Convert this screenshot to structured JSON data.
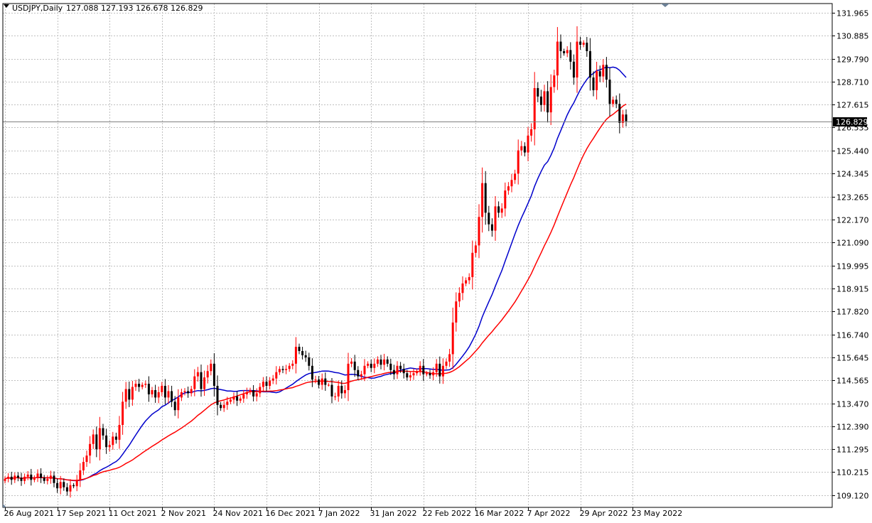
{
  "header": {
    "symbol_timeframe": "USDJPY,Daily",
    "ohlc_text": "127.088 127.193 126.678 126.829"
  },
  "colors": {
    "background": "#ffffff",
    "grid": "#c0c0c0",
    "bull_candle": "#ff0000",
    "bear_candle": "#000000",
    "ma_fast": "#0000cc",
    "ma_slow": "#ff0000",
    "price_label_bg": "#000000",
    "price_label_text": "#ffffff"
  },
  "chart_data": {
    "type": "candlestick",
    "symbol": "USDJPY",
    "timeframe": "Daily",
    "ylim": [
      108.6,
      132.4
    ],
    "y_ticks": [
      131.965,
      130.885,
      129.79,
      128.71,
      127.615,
      126.535,
      125.44,
      124.345,
      123.265,
      122.17,
      121.09,
      119.995,
      118.915,
      117.82,
      116.74,
      115.645,
      114.565,
      113.47,
      112.39,
      111.295,
      110.215,
      109.12
    ],
    "y_tick_labels": [
      "131.965",
      "130.885",
      "129.790",
      "128.710",
      "127.615",
      "126.535",
      "125.440",
      "124.345",
      "123.265",
      "122.170",
      "121.090",
      "119.995",
      "118.915",
      "117.820",
      "116.740",
      "115.645",
      "114.565",
      "113.470",
      "112.390",
      "111.295",
      "110.215",
      "109.120"
    ],
    "x_labels": [
      "26 Aug 2021",
      "17 Sep 2021",
      "11 Oct 2021",
      "2 Nov 2021",
      "24 Nov 2021",
      "16 Dec 2021",
      "7 Jan 2022",
      "31 Jan 2022",
      "22 Feb 2022",
      "16 Mar 2022",
      "7 Apr 2022",
      "29 Apr 2022",
      "23 May 2022"
    ],
    "grid": true,
    "current_price": 126.829,
    "current_price_label": "126.829",
    "closes": [
      109.9,
      110.0,
      109.85,
      110.05,
      109.95,
      109.8,
      110.0,
      110.1,
      109.85,
      109.95,
      110.15,
      109.95,
      109.8,
      109.9,
      110.05,
      109.7,
      109.45,
      109.75,
      109.5,
      109.3,
      109.6,
      109.55,
      109.85,
      110.3,
      110.7,
      111.0,
      111.55,
      112.0,
      111.3,
      112.3,
      111.95,
      111.4,
      111.5,
      111.9,
      111.75,
      112.45,
      113.55,
      114.15,
      113.65,
      114.25,
      114.4,
      114.25,
      114.35,
      114.4,
      113.9,
      114.1,
      113.75,
      114.0,
      114.3,
      113.75,
      114.05,
      113.55,
      113.15,
      113.75,
      114.0,
      114.05,
      113.95,
      114.15,
      114.75,
      114.95,
      114.15,
      114.7,
      115.0,
      115.35,
      114.3,
      113.4,
      113.25,
      113.4,
      113.55,
      113.65,
      113.8,
      113.6,
      113.7,
      113.9,
      114.0,
      114.1,
      113.8,
      113.95,
      114.25,
      114.5,
      114.3,
      114.55,
      114.65,
      114.95,
      115.1,
      115.05,
      115.1,
      115.25,
      115.35,
      116.15,
      115.95,
      115.75,
      115.65,
      115.25,
      114.6,
      114.6,
      114.35,
      114.65,
      114.35,
      114.35,
      113.8,
      113.8,
      114.3,
      113.95,
      114.1,
      115.35,
      115.45,
      115.05,
      114.75,
      114.85,
      115.25,
      115.35,
      115.15,
      115.35,
      115.55,
      115.3,
      115.55,
      115.35,
      115.05,
      114.85,
      115.25,
      115.1,
      114.9,
      114.7,
      114.8,
      114.9,
      115.0,
      115.25,
      114.85,
      114.9,
      114.8,
      114.95,
      115.35,
      114.75,
      115.25,
      115.45,
      115.8,
      117.3,
      118.3,
      118.7,
      119.15,
      119.3,
      119.45,
      120.6,
      120.95,
      122.3,
      123.9,
      122.5,
      121.95,
      121.65,
      122.8,
      122.5,
      122.7,
      123.55,
      123.75,
      124.05,
      124.35,
      125.45,
      125.65,
      125.35,
      126.15,
      126.45,
      128.4,
      128.0,
      127.6,
      128.25,
      127.25,
      128.45,
      129.0,
      130.6,
      130.15,
      130.05,
      130.2,
      129.65,
      128.9,
      130.6,
      130.45,
      130.55,
      130.15,
      128.9,
      128.3,
      129.2,
      128.95,
      129.5,
      128.8,
      127.65,
      127.85,
      127.65,
      126.75,
      127.15,
      126.83
    ]
  }
}
